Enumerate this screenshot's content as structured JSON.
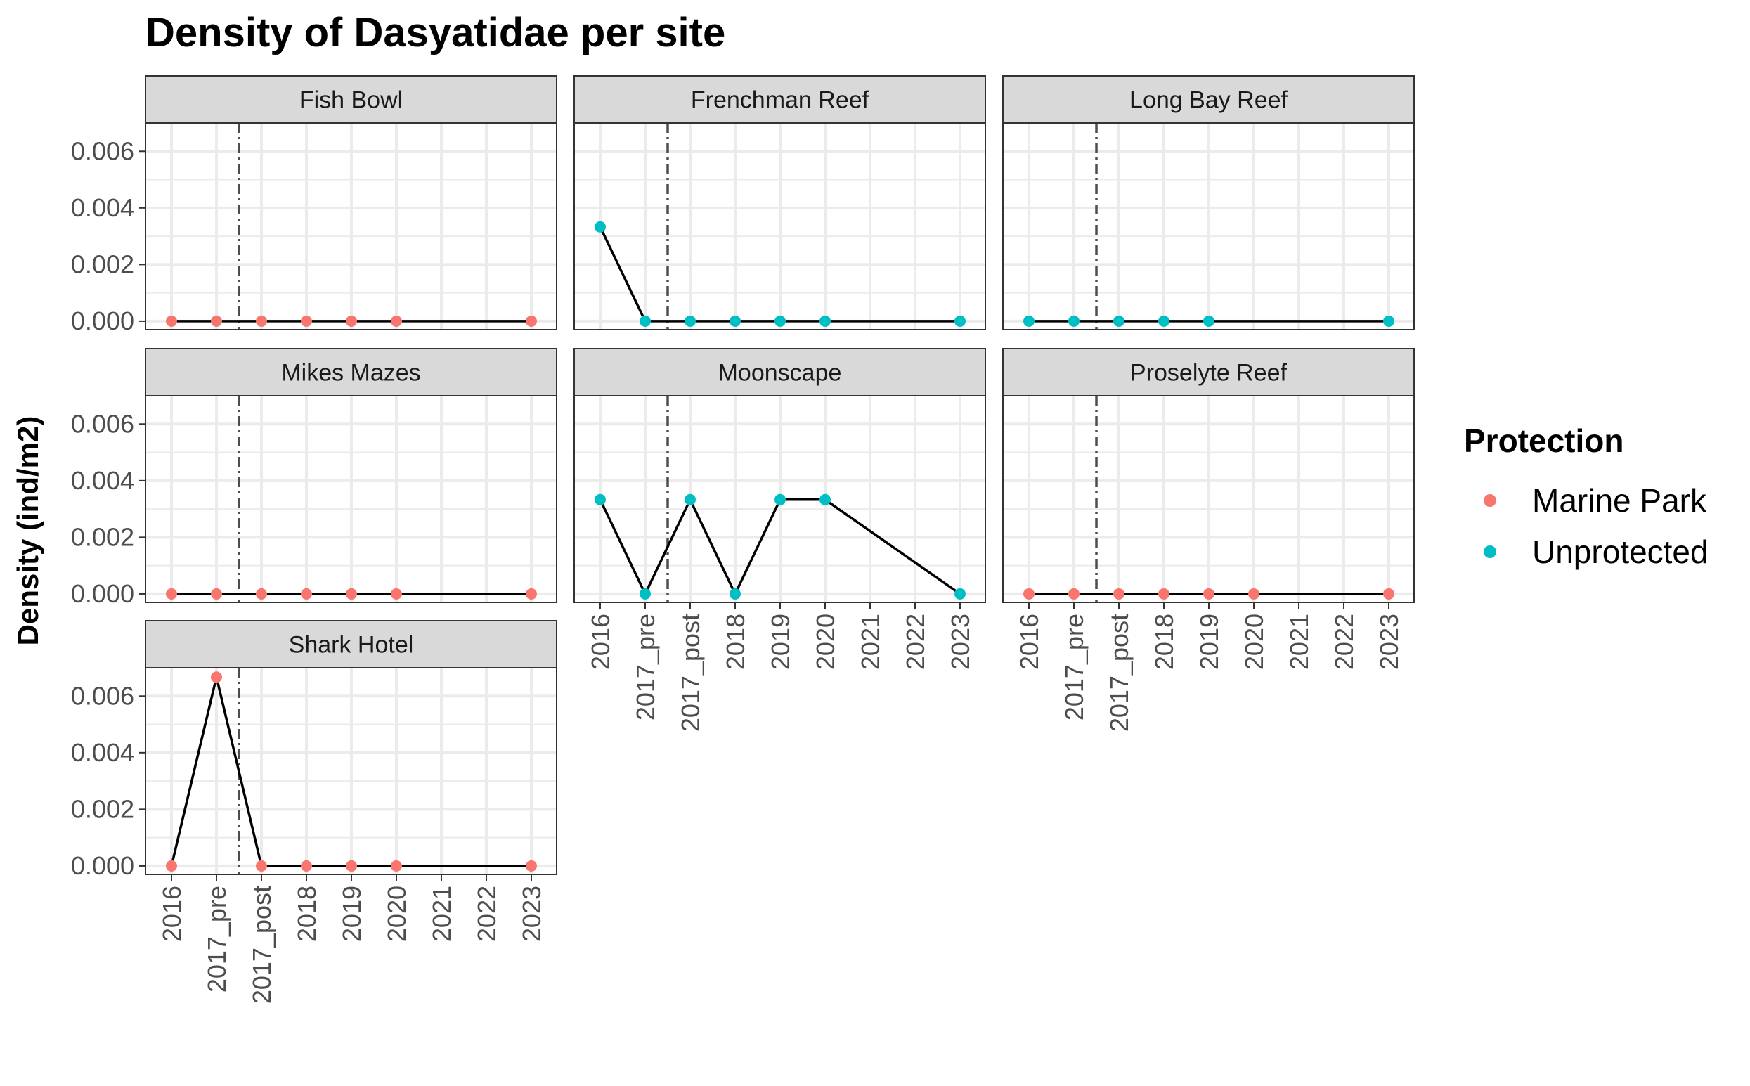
{
  "chart_data": {
    "type": "line",
    "title": "Density of Dasyatidae per site",
    "ylabel": "Density (ind/m2)",
    "xlabel": "",
    "categories": [
      "2016",
      "2017_pre",
      "2017_post",
      "2018",
      "2019",
      "2020",
      "2021",
      "2022",
      "2023"
    ],
    "yticks": [
      "0.000",
      "0.002",
      "0.004",
      "0.006"
    ],
    "ylim": [
      -0.0003,
      0.007
    ],
    "vline_after": "2017_pre",
    "grid": true,
    "legend": {
      "title": "Protection",
      "position": "right",
      "entries": [
        {
          "label": "Marine Park",
          "color": "#F8766D"
        },
        {
          "label": "Unprotected",
          "color": "#00BFC4"
        }
      ]
    },
    "colors": {
      "Marine Park": "#F8766D",
      "Unprotected": "#00BFC4",
      "line": "#000000",
      "vline": "#4d4d4d",
      "strip": "#D9D9D9",
      "grid": "#EBEBEB"
    },
    "panels": [
      {
        "site": "Fish Bowl",
        "protection": "Marine Park",
        "x": [
          "2016",
          "2017_pre",
          "2017_post",
          "2018",
          "2019",
          "2020",
          "2023"
        ],
        "y": [
          0,
          0,
          0,
          0,
          0,
          0,
          0
        ]
      },
      {
        "site": "Frenchman Reef",
        "protection": "Unprotected",
        "x": [
          "2016",
          "2017_pre",
          "2017_post",
          "2018",
          "2019",
          "2020",
          "2023"
        ],
        "y": [
          0.00333,
          0,
          0,
          0,
          0,
          0,
          0
        ]
      },
      {
        "site": "Long Bay Reef",
        "protection": "Unprotected",
        "x": [
          "2016",
          "2017_pre",
          "2017_post",
          "2018",
          "2019",
          "2023"
        ],
        "y": [
          0,
          0,
          0,
          0,
          0,
          0
        ]
      },
      {
        "site": "Mikes Mazes",
        "protection": "Marine Park",
        "x": [
          "2016",
          "2017_pre",
          "2017_post",
          "2018",
          "2019",
          "2020",
          "2023"
        ],
        "y": [
          0,
          0,
          0,
          0,
          0,
          0,
          0
        ]
      },
      {
        "site": "Moonscape",
        "protection": "Unprotected",
        "x": [
          "2016",
          "2017_pre",
          "2017_post",
          "2018",
          "2019",
          "2020",
          "2023"
        ],
        "y": [
          0.00333,
          0,
          0.00333,
          0,
          0.00333,
          0.00333,
          0
        ]
      },
      {
        "site": "Proselyte Reef",
        "protection": "Marine Park",
        "x": [
          "2016",
          "2017_pre",
          "2017_post",
          "2018",
          "2019",
          "2020",
          "2023"
        ],
        "y": [
          0,
          0,
          0,
          0,
          0,
          0,
          0
        ]
      },
      {
        "site": "Shark Hotel",
        "protection": "Marine Park",
        "x": [
          "2016",
          "2017_pre",
          "2017_post",
          "2018",
          "2019",
          "2020",
          "2023"
        ],
        "y": [
          0,
          0.00667,
          0,
          0,
          0,
          0,
          0
        ]
      }
    ]
  }
}
